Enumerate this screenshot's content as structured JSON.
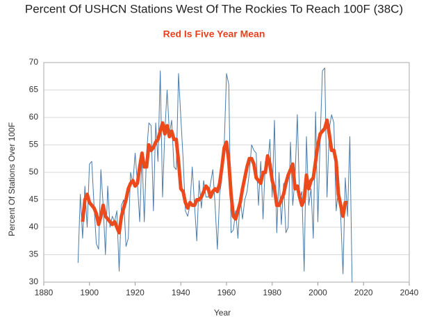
{
  "chart_data": {
    "type": "line",
    "title": "Percent Of USHCN Stations West Of The Rockies To Reach 100F (38C)",
    "subtitle": "Red Is Five Year Mean",
    "x_label": "Year",
    "y_label": "Percent Of Stations Over 100F",
    "x": [
      1895,
      1896,
      1897,
      1898,
      1899,
      1900,
      1901,
      1902,
      1903,
      1904,
      1905,
      1906,
      1907,
      1908,
      1909,
      1910,
      1911,
      1912,
      1913,
      1914,
      1915,
      1916,
      1917,
      1918,
      1919,
      1920,
      1921,
      1922,
      1923,
      1924,
      1925,
      1926,
      1927,
      1928,
      1929,
      1930,
      1931,
      1932,
      1933,
      1934,
      1935,
      1936,
      1937,
      1938,
      1939,
      1940,
      1941,
      1942,
      1943,
      1944,
      1945,
      1946,
      1947,
      1948,
      1949,
      1950,
      1951,
      1952,
      1953,
      1954,
      1955,
      1956,
      1957,
      1958,
      1959,
      1960,
      1961,
      1962,
      1963,
      1964,
      1965,
      1966,
      1967,
      1968,
      1969,
      1970,
      1971,
      1972,
      1973,
      1974,
      1975,
      1976,
      1977,
      1978,
      1979,
      1980,
      1981,
      1982,
      1983,
      1984,
      1985,
      1986,
      1987,
      1988,
      1989,
      1990,
      1991,
      1992,
      1993,
      1994,
      1995,
      1996,
      1997,
      1998,
      1999,
      2000,
      2001,
      2002,
      2003,
      2004,
      2005,
      2006,
      2007,
      2008,
      2009,
      2010,
      2011,
      2012,
      2013,
      2014,
      2015
    ],
    "series": [
      {
        "color": "#4a7aa8",
        "width": 1,
        "values": [
          33.5,
          46,
          38,
          47.5,
          40,
          51.5,
          52,
          44,
          37,
          36,
          50.5,
          44,
          35,
          47.5,
          40,
          42,
          41,
          43,
          32,
          44,
          45,
          36.5,
          38,
          50,
          48,
          53.5,
          48,
          41,
          53.5,
          41,
          53.5,
          59,
          58.5,
          43,
          59,
          52,
          68.5,
          45.5,
          57.5,
          65,
          57,
          59.5,
          51,
          50.5,
          68,
          60,
          52.5,
          43,
          42,
          44,
          51,
          44,
          37.5,
          48.5,
          43.5,
          48.5,
          45.5,
          45.5,
          48,
          50.5,
          44,
          36,
          46,
          49,
          55,
          68,
          66,
          39,
          39.5,
          43,
          38,
          45.5,
          41.5,
          45,
          46.5,
          50,
          55,
          54,
          53.5,
          44,
          52,
          41.5,
          52,
          51,
          56,
          45.5,
          59.5,
          39,
          50,
          40.5,
          48,
          39,
          40,
          55.5,
          44,
          49,
          60.5,
          45,
          46.5,
          32,
          56.5,
          44,
          47,
          38,
          61,
          41,
          56,
          68.5,
          69,
          45.5,
          58,
          60.5,
          59,
          43,
          47,
          42,
          31.5,
          49,
          42,
          56.5,
          29.5
        ]
      },
      {
        "color": "#ea4a1c",
        "width": 5,
        "values": [
          null,
          null,
          41,
          45,
          46,
          44.5,
          44,
          43.5,
          42.5,
          40.5,
          42,
          44,
          42,
          41.5,
          41,
          40.5,
          41,
          40,
          39,
          42,
          43.5,
          45,
          47,
          48,
          48.5,
          47.5,
          48,
          51,
          53.5,
          51,
          51,
          55,
          54,
          54.5,
          55.5,
          56,
          57.5,
          59,
          57,
          58.5,
          56.5,
          57.5,
          56,
          56,
          52,
          47,
          46.5,
          44.5,
          43.5,
          44.5,
          44,
          44,
          45,
          45,
          45.5,
          46.5,
          47.5,
          47,
          45.5,
          46.5,
          47,
          46.5,
          48,
          51,
          54.5,
          55.5,
          52,
          46,
          42,
          41.5,
          43,
          44.5,
          47,
          49,
          51,
          52.5,
          52.5,
          51.5,
          49,
          48.5,
          48,
          50,
          50,
          53,
          51.5,
          48.5,
          47,
          44,
          44,
          45,
          46,
          48,
          49.5,
          50.5,
          51.5,
          47,
          47.5,
          45.5,
          44,
          45,
          49.5,
          47,
          48.5,
          49,
          52,
          55,
          57,
          57.5,
          58,
          59.5,
          57,
          54,
          54,
          52,
          46,
          44,
          42,
          44.5,
          44.5,
          null,
          null
        ]
      }
    ],
    "xlim": [
      1880,
      2040
    ],
    "xticks": [
      1880,
      1900,
      1920,
      1940,
      1960,
      1980,
      2000,
      2020,
      2040
    ],
    "ylim": [
      30,
      70
    ],
    "yticks": [
      30,
      35,
      40,
      45,
      50,
      55,
      60,
      65,
      70
    ],
    "grid": true
  }
}
